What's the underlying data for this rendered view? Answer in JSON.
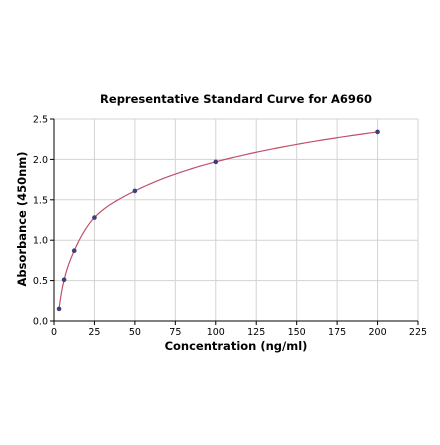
{
  "chart_data": {
    "type": "scatter",
    "title": "Representative Standard Curve for A6960",
    "xlabel": "Concentration (ng/ml)",
    "ylabel": "Absorbance (450nm)",
    "xlim": [
      0,
      225
    ],
    "ylim": [
      0,
      2.5
    ],
    "xticks": [
      0,
      25,
      50,
      75,
      100,
      125,
      150,
      175,
      200,
      225
    ],
    "yticks": [
      0.0,
      0.5,
      1.0,
      1.5,
      2.0,
      2.5
    ],
    "xtick_labels": [
      "0",
      "25",
      "50",
      "75",
      "100",
      "125",
      "150",
      "175",
      "200",
      "225"
    ],
    "ytick_labels": [
      "0.0",
      "0.5",
      "1.0",
      "1.5",
      "2.0",
      "2.5"
    ],
    "grid": true,
    "legend": "none",
    "series": [
      {
        "x": [
          3.125,
          6.25,
          12.5,
          25,
          50,
          100,
          200
        ],
        "y": [
          0.15,
          0.51,
          0.87,
          1.28,
          1.61,
          1.97,
          2.34
        ],
        "marker_color": "#3a3f7a",
        "fit_curve_color": "#c0506a"
      }
    ]
  }
}
